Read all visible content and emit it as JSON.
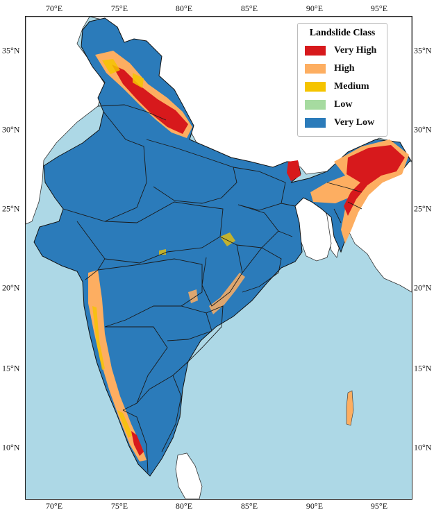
{
  "axes": {
    "lon_ticks": [
      "70°E",
      "75°E",
      "80°E",
      "85°E",
      "90°E",
      "95°E"
    ],
    "lat_ticks": [
      "35°N",
      "30°N",
      "25°N",
      "20°N",
      "15°N",
      "10°N"
    ]
  },
  "legend": {
    "title": "Landslide Class",
    "items": [
      {
        "label": "Very High",
        "color": "#d7191c"
      },
      {
        "label": "High",
        "color": "#fdae61"
      },
      {
        "label": "Medium",
        "color": "#f5c400"
      },
      {
        "label": "Low",
        "color": "#a6dba0"
      },
      {
        "label": "Very Low",
        "color": "#2b7bba"
      }
    ]
  },
  "colors": {
    "sea": "#add8e6",
    "neighbor_land": "#ffffff",
    "state_border": "#1a1a1a"
  }
}
